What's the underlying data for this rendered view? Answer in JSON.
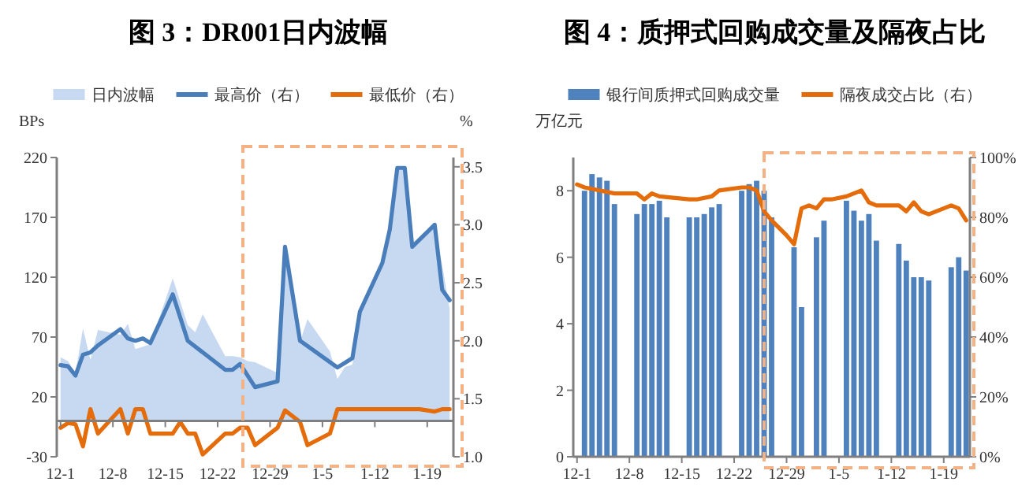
{
  "chart_data": [
    {
      "type": "area",
      "title": "图 3：DR001日内波幅",
      "legend": "top",
      "ylabel": "BPs",
      "y2label": "%",
      "categories": [
        "12-1",
        null,
        null,
        null,
        null,
        null,
        null,
        "12-8",
        null,
        null,
        null,
        null,
        null,
        null,
        "12-15",
        null,
        null,
        null,
        null,
        null,
        null,
        "12-22",
        null,
        null,
        null,
        null,
        null,
        null,
        "12-29",
        null,
        null,
        null,
        null,
        null,
        null,
        "1-5",
        null,
        null,
        null,
        null,
        null,
        null,
        "1-12",
        null,
        null,
        null,
        null,
        null,
        null,
        "1-19",
        null,
        null,
        null
      ],
      "ylim": [
        -30,
        220
      ],
      "yticks": [
        -30,
        20,
        70,
        120,
        170,
        220
      ],
      "y2lim": [
        1.0,
        3.58
      ],
      "y2ticks": [
        {
          "value": 1,
          "label": "1.0"
        },
        1.5,
        {
          "value": 2,
          "label": "2.0"
        },
        2.5,
        {
          "value": 3,
          "label": "3.0"
        },
        3.5
      ],
      "series": [
        {
          "name": "日内波幅",
          "color": "#c6d9f1",
          "values": [
            53,
            50,
            40,
            77,
            51,
            76,
            null,
            null,
            72,
            81,
            60,
            62,
            64,
            null,
            null,
            119,
            null,
            80,
            74,
            89,
            null,
            null,
            54,
            54,
            53,
            50,
            49,
            null,
            null,
            40,
            144,
            null,
            66,
            85,
            null,
            null,
            58,
            35,
            45,
            47,
            89,
            null,
            null,
            131,
            159,
            210,
            210,
            144,
            null,
            null,
            163,
            130,
            93
          ]
        },
        {
          "name": "最高价（右）",
          "type": "line",
          "axis": "y2",
          "color": "#4a7ebb",
          "values": [
            1.79,
            1.78,
            1.7,
            1.88,
            1.9,
            1.96,
            null,
            null,
            2.1,
            2.02,
            2.0,
            2.02,
            1.98,
            null,
            null,
            2.4,
            null,
            2.0,
            null,
            null,
            null,
            null,
            1.75,
            1.75,
            1.8,
            null,
            1.6,
            null,
            null,
            1.65,
            2.81,
            null,
            2.0,
            null,
            null,
            null,
            null,
            1.77,
            1.81,
            1.85,
            2.25,
            null,
            null,
            2.67,
            2.96,
            3.49,
            3.49,
            2.81,
            null,
            null,
            3.0,
            2.44,
            2.35
          ]
        },
        {
          "name": "最低价（右）",
          "type": "line",
          "axis": "y2",
          "color": "#e46c0a",
          "values": [
            1.25,
            1.29,
            1.28,
            1.09,
            1.41,
            1.2,
            null,
            null,
            1.41,
            1.2,
            1.41,
            1.41,
            1.2,
            null,
            null,
            1.2,
            1.3,
            1.2,
            1.2,
            1.02,
            null,
            null,
            1.2,
            1.2,
            1.25,
            1.25,
            1.1,
            null,
            null,
            1.25,
            1.4,
            null,
            1.3,
            1.1,
            null,
            null,
            1.2,
            1.41,
            null,
            null,
            null,
            null,
            null,
            null,
            null,
            null,
            null,
            null,
            1.41,
            null,
            1.39,
            1.41,
            1.41
          ]
        }
      ]
    },
    {
      "type": "bar",
      "title": "图 4：质押式回购成交量及隔夜占比",
      "legend": "top",
      "ylabel": "万亿元",
      "categories": [
        "12-1",
        null,
        null,
        null,
        null,
        null,
        null,
        "12-8",
        null,
        null,
        null,
        null,
        null,
        null,
        "12-15",
        null,
        null,
        null,
        null,
        null,
        null,
        "12-22",
        null,
        null,
        null,
        null,
        null,
        null,
        "12-29",
        null,
        null,
        null,
        null,
        null,
        null,
        "1-5",
        null,
        null,
        null,
        null,
        null,
        null,
        "1-12",
        null,
        null,
        null,
        null,
        null,
        null,
        "1-19",
        null,
        null,
        null
      ],
      "ylim": [
        0,
        9
      ],
      "yticks": [
        0,
        2,
        4,
        6,
        8
      ],
      "y2lim": [
        0,
        100
      ],
      "y2ticks": [
        {
          "value": 0,
          "label": "0%"
        },
        {
          "value": 20,
          "label": "20%"
        },
        {
          "value": 40,
          "label": "40%"
        },
        {
          "value": 60,
          "label": "60%"
        },
        {
          "value": 80,
          "label": "80%"
        },
        {
          "value": 100,
          "label": "100%"
        }
      ],
      "series": [
        {
          "name": "银行间质押式回购成交量",
          "color": "#4f81bd",
          "values": [
            null,
            8.0,
            8.5,
            8.4,
            8.3,
            7.6,
            null,
            null,
            7.3,
            7.6,
            7.6,
            7.7,
            7.2,
            null,
            null,
            7.2,
            7.2,
            7.3,
            7.5,
            7.6,
            null,
            null,
            8.0,
            8.2,
            8.3,
            8.0,
            7.2,
            null,
            null,
            6.3,
            4.5,
            null,
            6.6,
            7.1,
            null,
            null,
            7.7,
            7.4,
            7.1,
            7.3,
            6.5,
            null,
            null,
            6.4,
            5.9,
            5.4,
            5.4,
            5.3,
            null,
            null,
            5.7,
            6.0,
            5.6
          ]
        },
        {
          "name": "隔夜成交占比（右）",
          "type": "line",
          "axis": "y2",
          "color": "#e46c0a",
          "values": [
            91,
            90,
            null,
            89,
            null,
            88,
            null,
            null,
            88,
            86,
            88,
            87,
            null,
            null,
            null,
            86,
            86,
            null,
            87,
            89,
            null,
            null,
            90,
            90,
            89,
            82,
            79,
            null,
            74,
            71,
            83,
            84,
            83,
            86,
            86,
            null,
            87,
            88,
            89,
            85,
            84,
            null,
            null,
            84,
            82,
            85,
            82,
            81,
            null,
            null,
            84,
            83,
            79
          ]
        }
      ]
    }
  ]
}
